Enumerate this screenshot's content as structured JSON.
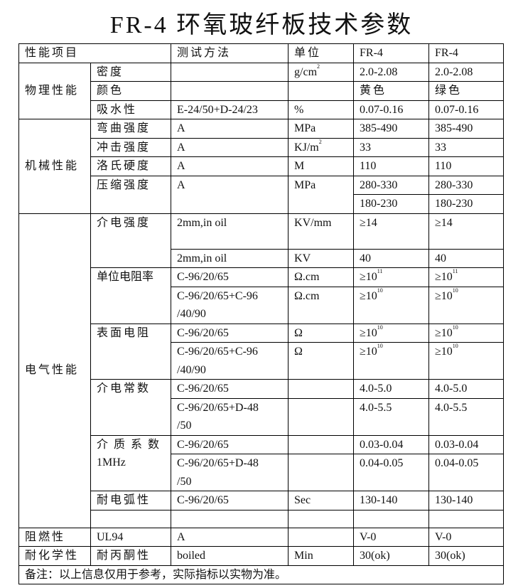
{
  "title": "FR-4 环氧玻纤板技术参数",
  "header": {
    "item": "性能项目",
    "method": "测试方法",
    "unit": "单位",
    "col1": "FR-4",
    "col2": "FR-4"
  },
  "physical": {
    "group": "物理性能",
    "density": {
      "name": "密度",
      "method": "",
      "unit": "g/cm",
      "unit_sup": "2",
      "v1": "2.0-2.08",
      "v2": "2.0-2.08"
    },
    "color": {
      "name": "颜色",
      "method": "",
      "unit": "",
      "v1": "黄色",
      "v2": "绿色"
    },
    "water": {
      "name": "吸水性",
      "method": "E-24/50+D-24/23",
      "unit": "%",
      "v1": "0.07-0.16",
      "v2": "0.07-0.16"
    }
  },
  "mechanical": {
    "group": "机械性能",
    "flexural": {
      "name": "弯曲强度",
      "method": "A",
      "unit": "MPa",
      "v1": "385-490",
      "v2": "385-490"
    },
    "impact": {
      "name": "冲击强度",
      "method": "A",
      "unit": "KJ/m",
      "unit_sup": "2",
      "v1": "33",
      "v2": "33"
    },
    "rockwell": {
      "name": "洛氏硬度",
      "method": "A",
      "unit": "M",
      "v1": "110",
      "v2": "110"
    },
    "compressive": {
      "name": "压缩强度",
      "method": "A",
      "unit": "MPa",
      "v1": "280-330",
      "v2": "280-330",
      "v1b": "180-230",
      "v2b": "180-230"
    }
  },
  "electrical": {
    "group": "电气性能",
    "dielectric_strength": {
      "name": "介电强度",
      "r1": {
        "method": "2mm,in oil",
        "unit": "KV/mm",
        "v1": "≥14",
        "v2": "≥14"
      },
      "r2": {
        "method": "2mm,in oil",
        "unit": "KV",
        "v1": "40",
        "v2": "40"
      }
    },
    "volume_resistivity": {
      "name": "单位电阻率",
      "r1": {
        "method": "C-96/20/65",
        "unit": "Ω.cm",
        "v1": "≥10",
        "v1_sup": "11",
        "v2": "≥10",
        "v2_sup": "11"
      },
      "r2": {
        "method": "C-96/20/65+C-96\n/40/90",
        "unit": "Ω.cm",
        "v1": "≥10",
        "v1_sup": "10",
        "v2": "≥10",
        "v2_sup": "10"
      }
    },
    "surface_resistance": {
      "name": "表面电阻",
      "r1": {
        "method": "C-96/20/65",
        "unit": "Ω",
        "v1": "≥10",
        "v1_sup": "10",
        "v2": "≥10",
        "v2_sup": "10"
      },
      "r2": {
        "method": "C-96/20/65+C-96\n/40/90",
        "unit": "Ω",
        "v1": "≥10",
        "v1_sup": "10",
        "v2": "≥10",
        "v2_sup": "10"
      }
    },
    "dielectric_constant": {
      "name": "介电常数",
      "r1": {
        "method": "C-96/20/65",
        "unit": "",
        "v1": "4.0-5.0",
        "v2": "4.0-5.0"
      },
      "r2": {
        "method": "C-96/20/65+D-48\n/50",
        "unit": "",
        "v1": "4.0-5.5",
        "v2": "4.0-5.5"
      }
    },
    "dissipation_factor": {
      "name": "介质系数",
      "name2": "1MHz",
      "r1": {
        "method": "C-96/20/65",
        "unit": "",
        "v1": "0.03-0.04",
        "v2": "0.03-0.04"
      },
      "r2": {
        "method": "C-96/20/65+D-48\n/50",
        "unit": "",
        "v1": "0.04-0.05",
        "v2": "0.04-0.05"
      }
    },
    "arc_resistance": {
      "name": "耐电弧性",
      "method": "C-96/20/65",
      "unit": "Sec",
      "v1": "130-140",
      "v2": "130-140"
    }
  },
  "flame": {
    "group": "阻燃性",
    "name": "UL94",
    "method": "A",
    "unit": "",
    "v1": "V-0",
    "v2": "V-0"
  },
  "chemical": {
    "group": "耐化学性",
    "name": "耐丙酮性",
    "method": "boiled",
    "unit": "Min",
    "v1": "30(ok)",
    "v2": "30(ok)"
  },
  "note": "备注：以上信息仅用于参考，实际指标以实物为准。"
}
